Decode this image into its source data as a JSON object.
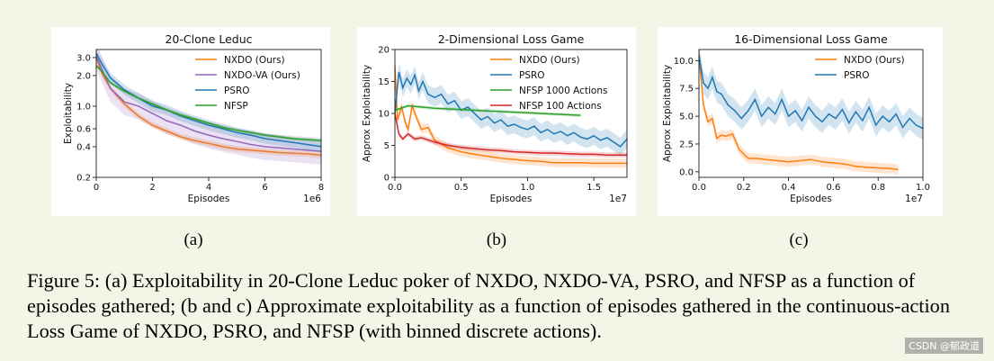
{
  "caption": "Figure 5: (a) Exploitability in 20-Clone Leduc poker of NXDO, NXDO-VA, PSRO, and NFSP as a function of episodes gathered; (b and c) Approximate exploitability as a function of episodes gathered in the continuous-action Loss Game of NXDO, PSRO, and NFSP (with binned discrete actions).",
  "watermark": "CSDN @郁政道",
  "sublabels": [
    "(a)",
    "(b)",
    "(c)"
  ],
  "colors": {
    "orange": "#ff7f0e",
    "purple": "#9467bd",
    "blue": "#1f77b4",
    "green": "#2ca02c",
    "red": "#d62728"
  },
  "chart_data": [
    {
      "type": "line",
      "title": "20-Clone Leduc",
      "xlabel": "Episodes",
      "ylabel": "Exploitability",
      "xscale_label": "1e6",
      "yscale": "log",
      "xlim": [
        0,
        8
      ],
      "ylim": [
        0.2,
        3.6
      ],
      "xticks": [
        0,
        2,
        4,
        6,
        8
      ],
      "xtick_labels": [
        "0",
        "2",
        "4",
        "6",
        "8"
      ],
      "yticks": [
        0.2,
        0.4,
        0.6,
        1.0,
        2.0,
        3.0
      ],
      "ytick_labels": [
        "0.2",
        "0.4",
        "0.6",
        "1.0",
        "2.0",
        "3.0"
      ],
      "series": [
        {
          "name": "NXDO (Ours)",
          "color": "orange",
          "x": [
            0,
            0.2,
            0.5,
            1,
            1.5,
            2,
            2.5,
            3,
            3.5,
            4,
            4.5,
            5,
            5.5,
            6,
            6.5,
            7,
            7.5,
            8
          ],
          "y": [
            3.0,
            2.1,
            1.5,
            1.05,
            0.8,
            0.65,
            0.57,
            0.5,
            0.46,
            0.43,
            0.4,
            0.38,
            0.37,
            0.36,
            0.35,
            0.345,
            0.34,
            0.33
          ],
          "band": 0.07
        },
        {
          "name": "NXDO-VA (Ours)",
          "color": "purple",
          "x": [
            0,
            0.2,
            0.5,
            1,
            1.5,
            2,
            2.5,
            3,
            3.5,
            4,
            4.5,
            5,
            5.5,
            6,
            6.5,
            7,
            7.5,
            8
          ],
          "y": [
            3.1,
            2.3,
            1.5,
            1.1,
            1.0,
            0.85,
            0.72,
            0.65,
            0.57,
            0.52,
            0.48,
            0.45,
            0.42,
            0.4,
            0.39,
            0.38,
            0.37,
            0.36
          ],
          "band": 0.35
        },
        {
          "name": "PSRO",
          "color": "blue",
          "x": [
            0,
            0.2,
            0.5,
            1,
            1.5,
            2,
            2.5,
            3,
            3.5,
            4,
            4.5,
            5,
            5.5,
            6,
            6.5,
            7,
            7.5,
            8
          ],
          "y": [
            3.3,
            2.6,
            1.9,
            1.45,
            1.2,
            1.0,
            0.92,
            0.8,
            0.72,
            0.65,
            0.6,
            0.55,
            0.52,
            0.48,
            0.46,
            0.44,
            0.42,
            0.4
          ],
          "band": 0.12
        },
        {
          "name": "NFSP",
          "color": "green",
          "x": [
            0,
            0.2,
            0.5,
            1,
            1.5,
            2,
            2.5,
            3,
            3.5,
            4,
            4.5,
            5,
            5.5,
            6,
            6.5,
            7,
            7.5,
            8
          ],
          "y": [
            2.5,
            2.2,
            1.7,
            1.4,
            1.2,
            1.05,
            0.92,
            0.82,
            0.75,
            0.68,
            0.62,
            0.58,
            0.55,
            0.52,
            0.5,
            0.48,
            0.47,
            0.46
          ],
          "band": 0.04
        }
      ]
    },
    {
      "type": "line",
      "title": "2-Dimensional Loss Game",
      "xlabel": "Episodes",
      "ylabel": "Approx Exploitability",
      "xscale_label": "1e7",
      "yscale": "linear",
      "xlim": [
        0,
        1.75
      ],
      "ylim": [
        0,
        20
      ],
      "xticks": [
        0,
        0.5,
        1.0,
        1.5
      ],
      "xtick_labels": [
        "0.0",
        "0.5",
        "1.0",
        "1.5"
      ],
      "yticks": [
        0,
        5,
        10,
        15,
        20
      ],
      "ytick_labels": [
        "0",
        "5",
        "10",
        "15",
        "20"
      ],
      "series": [
        {
          "name": "NXDO (Ours)",
          "color": "orange",
          "x": [
            0,
            0.02,
            0.05,
            0.08,
            0.1,
            0.13,
            0.16,
            0.2,
            0.25,
            0.3,
            0.4,
            0.5,
            0.6,
            0.7,
            0.8,
            0.9,
            1.0,
            1.1,
            1.2,
            1.3,
            1.4,
            1.5,
            1.6,
            1.75
          ],
          "y": [
            17.5,
            9.0,
            11.0,
            8.5,
            7.5,
            11.2,
            9.5,
            7.5,
            7.8,
            5.8,
            4.6,
            4.0,
            3.6,
            3.3,
            3.0,
            2.8,
            2.6,
            2.5,
            2.3,
            2.3,
            2.3,
            2.2,
            2.2,
            2.2
          ],
          "band": 0.7
        },
        {
          "name": "PSRO",
          "color": "blue",
          "x": [
            0,
            0.03,
            0.06,
            0.09,
            0.12,
            0.15,
            0.18,
            0.21,
            0.25,
            0.3,
            0.35,
            0.4,
            0.45,
            0.5,
            0.55,
            0.6,
            0.65,
            0.7,
            0.75,
            0.8,
            0.85,
            0.9,
            0.95,
            1.0,
            1.05,
            1.1,
            1.15,
            1.2,
            1.25,
            1.3,
            1.35,
            1.4,
            1.45,
            1.5,
            1.55,
            1.6,
            1.65,
            1.7,
            1.75
          ],
          "y": [
            10.0,
            16.5,
            14.0,
            15.5,
            14.5,
            16.0,
            13.5,
            15.0,
            13.0,
            12.5,
            13.0,
            11.5,
            12.0,
            10.5,
            11.0,
            10.0,
            9.0,
            9.5,
            8.5,
            9.0,
            8.0,
            8.3,
            7.8,
            7.5,
            8.0,
            7.0,
            7.5,
            6.8,
            7.2,
            6.5,
            7.0,
            6.3,
            6.0,
            6.5,
            5.8,
            6.2,
            5.5,
            4.8,
            6.0
          ],
          "band": 1.4
        },
        {
          "name": "NFSP 1000 Actions",
          "color": "green",
          "x": [
            0,
            0.1,
            0.2,
            0.3,
            0.4,
            0.5,
            0.6,
            0.7,
            0.8,
            0.9,
            1.0,
            1.1,
            1.2,
            1.3,
            1.4
          ],
          "y": [
            10.5,
            11.2,
            11.0,
            10.8,
            10.7,
            10.6,
            10.5,
            10.4,
            10.3,
            10.2,
            10.1,
            10.0,
            9.9,
            9.8,
            9.7
          ],
          "band": 0.25
        },
        {
          "name": "NFSP 100 Actions",
          "color": "red",
          "x": [
            0,
            0.03,
            0.06,
            0.1,
            0.15,
            0.2,
            0.3,
            0.4,
            0.5,
            0.6,
            0.7,
            0.8,
            0.9,
            1.0,
            1.1,
            1.2,
            1.3,
            1.4,
            1.5,
            1.6,
            1.75
          ],
          "y": [
            10.0,
            6.8,
            6.0,
            6.8,
            6.0,
            6.2,
            5.5,
            5.0,
            4.7,
            4.5,
            4.3,
            4.2,
            4.0,
            3.9,
            3.8,
            3.8,
            3.7,
            3.6,
            3.6,
            3.5,
            3.5
          ],
          "band": 0.4
        }
      ]
    },
    {
      "type": "line",
      "title": "16-Dimensional Loss Game",
      "xlabel": "Episodes",
      "ylabel": "Approx Exploitability",
      "xscale_label": "1e7",
      "yscale": "linear",
      "xlim": [
        0,
        1.0
      ],
      "ylim": [
        -0.5,
        11
      ],
      "xticks": [
        0,
        0.2,
        0.4,
        0.6,
        0.8,
        1.0
      ],
      "xtick_labels": [
        "0.0",
        "0.2",
        "0.4",
        "0.6",
        "0.8",
        "1.0"
      ],
      "yticks": [
        0,
        2.5,
        5.0,
        7.5,
        10.0
      ],
      "ytick_labels": [
        "0.0",
        "2.5",
        "5.0",
        "7.5",
        "10.0"
      ],
      "series": [
        {
          "name": "NXDO (Ours)",
          "color": "orange",
          "x": [
            0,
            0.02,
            0.04,
            0.06,
            0.08,
            0.1,
            0.12,
            0.15,
            0.18,
            0.22,
            0.26,
            0.3,
            0.35,
            0.4,
            0.45,
            0.5,
            0.55,
            0.6,
            0.65,
            0.7,
            0.75,
            0.8,
            0.85,
            0.89
          ],
          "y": [
            10.5,
            6.0,
            4.5,
            4.8,
            3.0,
            3.3,
            3.2,
            3.4,
            2.0,
            1.2,
            1.2,
            1.1,
            1.0,
            0.9,
            1.0,
            1.1,
            0.9,
            0.8,
            0.7,
            0.5,
            0.4,
            0.35,
            0.3,
            0.2
          ],
          "band": 0.45
        },
        {
          "name": "PSRO",
          "color": "blue",
          "x": [
            0,
            0.02,
            0.04,
            0.06,
            0.08,
            0.1,
            0.13,
            0.16,
            0.19,
            0.22,
            0.25,
            0.28,
            0.31,
            0.34,
            0.37,
            0.4,
            0.43,
            0.46,
            0.49,
            0.52,
            0.55,
            0.58,
            0.61,
            0.64,
            0.67,
            0.7,
            0.73,
            0.76,
            0.79,
            0.82,
            0.85,
            0.88,
            0.91,
            0.94,
            0.97,
            1.0
          ],
          "y": [
            10.5,
            8.0,
            7.5,
            8.5,
            7.2,
            7.0,
            6.0,
            5.5,
            4.8,
            5.5,
            6.5,
            5.0,
            5.8,
            5.2,
            6.5,
            5.0,
            5.5,
            4.6,
            5.8,
            5.0,
            4.5,
            5.2,
            4.8,
            5.6,
            4.4,
            5.4,
            4.6,
            5.8,
            4.2,
            5.0,
            4.5,
            5.2,
            4.0,
            4.8,
            4.2,
            3.9
          ],
          "band": 1.0
        }
      ]
    }
  ]
}
